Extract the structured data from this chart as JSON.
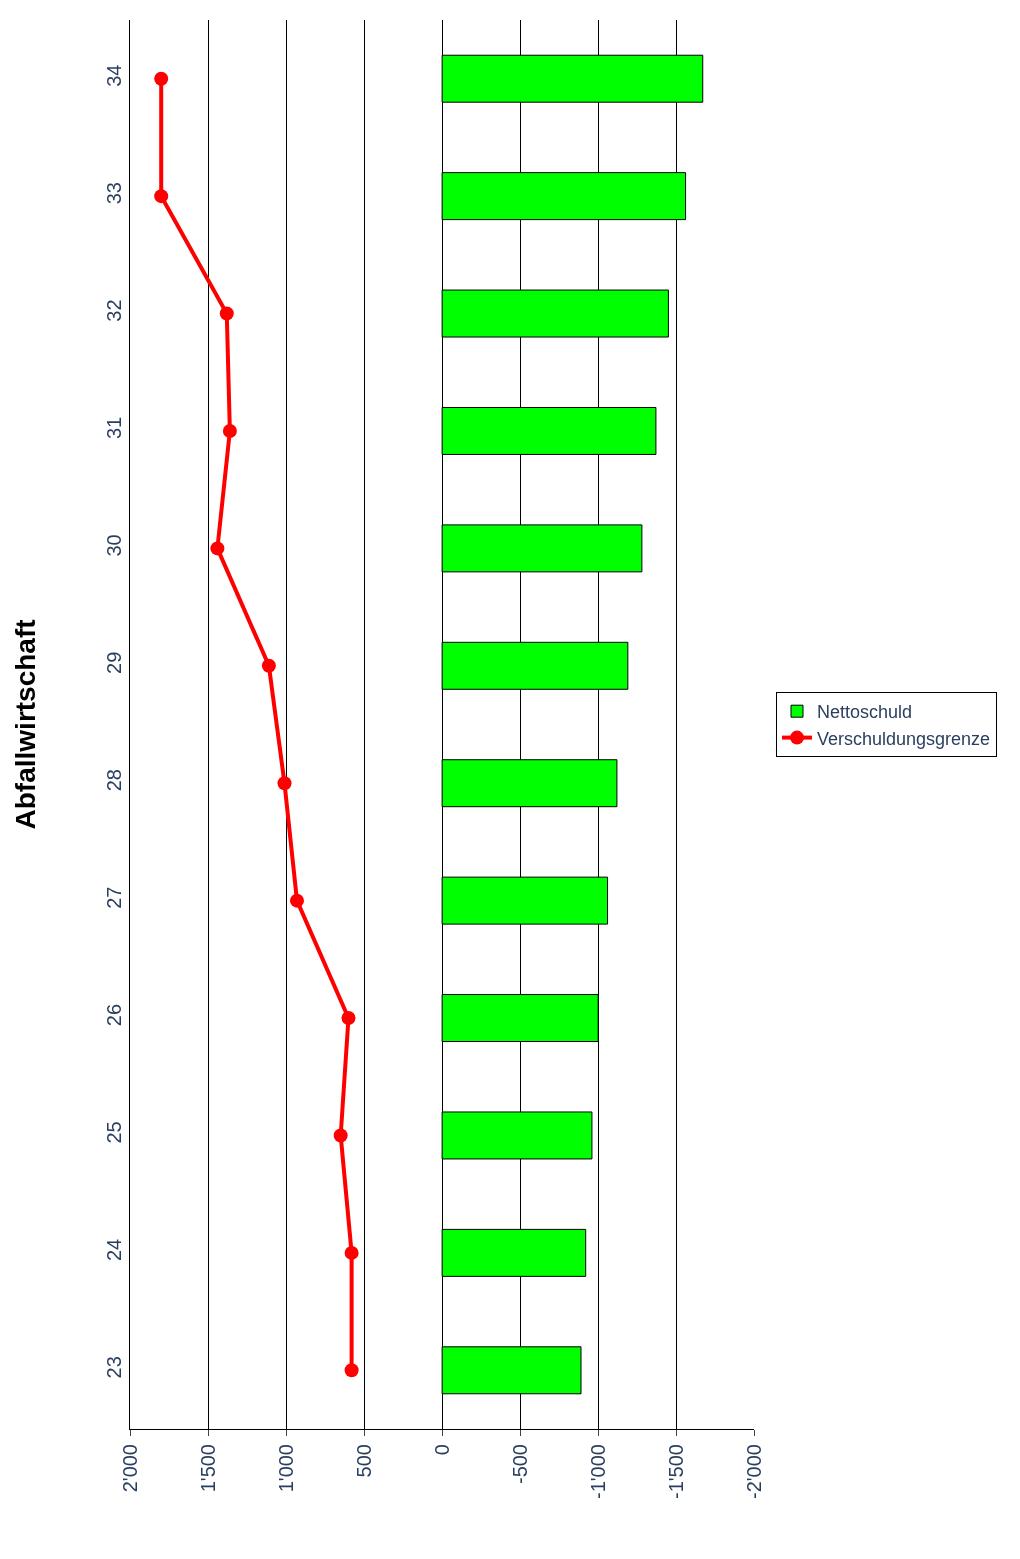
{
  "chart_data": {
    "type": "bar",
    "orientation": "horizontal",
    "title": "Abfallwirtschaft",
    "categories": [
      "34",
      "33",
      "32",
      "31",
      "30",
      "29",
      "28",
      "27",
      "26",
      "25",
      "24",
      "23"
    ],
    "series": [
      {
        "name": "Nettoschuld",
        "color": "#00ff00",
        "values": [
          -1670,
          -1560,
          -1450,
          -1370,
          -1280,
          -1190,
          -1120,
          -1060,
          -1000,
          -960,
          -920,
          -890
        ]
      },
      {
        "name": "Verschuldungsgrenze",
        "type": "line",
        "color": "#ff0000",
        "marker": "circle",
        "values": [
          1800,
          1800,
          1380,
          1360,
          1440,
          1110,
          1010,
          930,
          600,
          650,
          580,
          580
        ]
      }
    ],
    "xlim": [
      2000,
      -2000
    ],
    "xticks": [
      {
        "value": 2000,
        "label": "2'000"
      },
      {
        "value": 1500,
        "label": "1'500"
      },
      {
        "value": 1000,
        "label": "1'000"
      },
      500,
      0,
      -500,
      {
        "value": -1000,
        "label": "-1'000"
      },
      {
        "value": -1500,
        "label": "-1'500"
      },
      {
        "value": -2000,
        "label": "-2'000"
      }
    ],
    "grid": "x",
    "legend": "right"
  }
}
